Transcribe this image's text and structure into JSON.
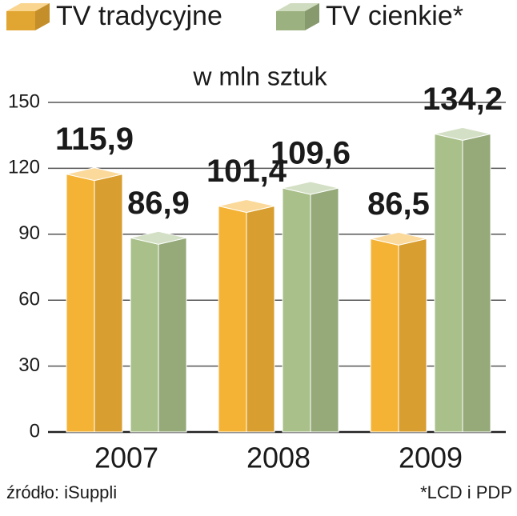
{
  "chart_data": {
    "type": "bar3d",
    "subtitle": "w mln sztuk",
    "categories": [
      "2007",
      "2008",
      "2009"
    ],
    "series": [
      {
        "name": "TV tradycyjne",
        "color": "#f5b335",
        "values": [
          115.9,
          101.4,
          86.5
        ],
        "value_labels": [
          "115,9",
          "101,4",
          "86,5"
        ]
      },
      {
        "name": "TV cienkie*",
        "color": "#a9c08a",
        "values": [
          86.9,
          109.6,
          134.2
        ],
        "value_labels": [
          "86,9",
          "109,6",
          "134,2"
        ]
      }
    ],
    "ylim": [
      0,
      150
    ],
    "yticks": [
      0,
      30,
      60,
      90,
      120,
      150
    ],
    "grid": true,
    "source": "źródło: iSuppli",
    "note": "*LCD i PDP"
  }
}
